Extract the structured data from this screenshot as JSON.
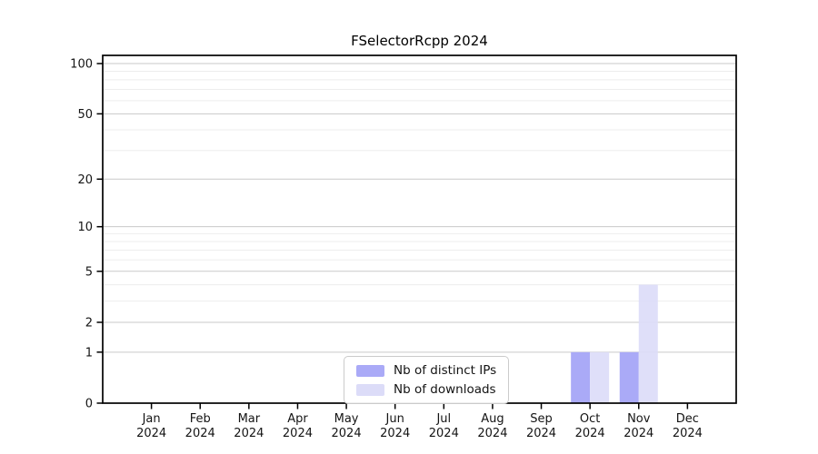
{
  "chart_data": {
    "type": "bar",
    "title": "FSelectorRcpp 2024",
    "categories": [
      "Jan 2024",
      "Feb 2024",
      "Mar 2024",
      "Apr 2024",
      "May 2024",
      "Jun 2024",
      "Jul 2024",
      "Aug 2024",
      "Sep 2024",
      "Oct 2024",
      "Nov 2024",
      "Dec 2024"
    ],
    "series": [
      {
        "name": "Nb of distinct IPs",
        "color": "#aaaaf7",
        "values": [
          0,
          0,
          0,
          0,
          0,
          0,
          0,
          0,
          0,
          1,
          1,
          0
        ]
      },
      {
        "name": "Nb of downloads",
        "color": "#dcdcf8",
        "values": [
          0,
          0,
          0,
          0,
          0,
          0,
          0,
          0,
          0,
          1,
          4,
          0
        ]
      }
    ],
    "y_axis": {
      "scale": "log1p",
      "range": [
        0,
        100
      ],
      "tick_labels": [
        0,
        1,
        2,
        5,
        10,
        20,
        50,
        100
      ],
      "minor_gridlines": [
        3,
        4,
        6,
        7,
        8,
        9,
        30,
        40,
        60,
        70,
        80,
        90
      ]
    },
    "x_axis": {
      "tick_label_lines": 2
    },
    "legend": {
      "position": "lower center"
    },
    "grid": true,
    "colors": {
      "major_grid": "#c9c9c9",
      "minor_grid": "#ededed",
      "spine": "#000000",
      "background": "#ffffff"
    }
  }
}
